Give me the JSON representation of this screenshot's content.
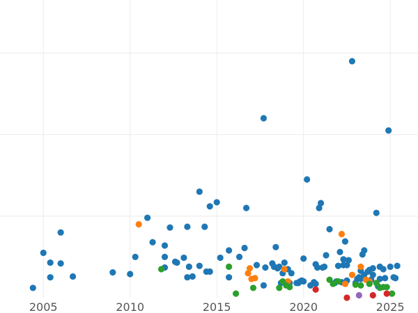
{
  "chart_data": {
    "type": "scatter",
    "title": "",
    "xlabel": "",
    "ylabel": "",
    "xlim": [
      2002.5,
      2026.6
    ],
    "ylim": [
      0,
      3.65
    ],
    "x_ticks": [
      2005,
      2010,
      2015,
      2020,
      2025
    ],
    "x_tick_labels": [
      "2005",
      "2010",
      "2015",
      "2020",
      "2025"
    ],
    "y_gridlines": [
      1,
      2,
      3
    ],
    "grid": true,
    "legend": "none",
    "series": [
      {
        "color": "#1f77b4",
        "x": [
          2004.4,
          2005.0,
          2005.4,
          2005.4,
          2006.0,
          2006.0,
          2006.7,
          2009.0,
          2010.0,
          2010.3,
          2011.0,
          2011.3,
          2012.0,
          2012.0,
          2012.0,
          2012.3,
          2012.6,
          2012.7,
          2013.1,
          2013.3,
          2013.3,
          2013.4,
          2013.6,
          2014.0,
          2014.0,
          2014.3,
          2014.4,
          2014.6,
          2014.6,
          2015.0,
          2015.2,
          2015.7,
          2015.7,
          2016.3,
          2016.6,
          2016.7,
          2017.3,
          2017.7,
          2017.7,
          2017.8,
          2018.2,
          2018.3,
          2018.4,
          2018.5,
          2018.6,
          2018.7,
          2018.8,
          2018.9,
          2019.0,
          2019.1,
          2019.2,
          2019.3,
          2019.6,
          2019.7,
          2019.8,
          2019.9,
          2020.0,
          2020.0,
          2020.2,
          2020.4,
          2020.6,
          2020.7,
          2020.7,
          2020.8,
          2020.9,
          2021.0,
          2021.1,
          2021.2,
          2021.3,
          2021.5,
          2021.8,
          2021.9,
          2022.0,
          2022.1,
          2022.2,
          2022.3,
          2022.3,
          2022.4,
          2022.5,
          2022.5,
          2022.6,
          2022.8,
          2023.0,
          2023.1,
          2023.2,
          2023.3,
          2023.3,
          2023.4,
          2023.5,
          2023.5,
          2023.7,
          2023.8,
          2023.9,
          2024.0,
          2024.0,
          2024.2,
          2024.3,
          2024.4,
          2024.4,
          2024.6,
          2024.7,
          2024.9,
          2025.0,
          2025.2,
          2025.3,
          2025.4
        ],
        "y": [
          0.12,
          0.55,
          0.25,
          0.43,
          0.42,
          0.8,
          0.26,
          0.31,
          0.29,
          0.5,
          0.98,
          0.68,
          0.37,
          0.5,
          0.64,
          0.86,
          0.44,
          0.43,
          0.49,
          0.25,
          0.87,
          0.38,
          0.26,
          1.3,
          0.39,
          0.87,
          0.32,
          0.32,
          1.12,
          1.17,
          0.49,
          0.25,
          0.58,
          0.5,
          0.61,
          1.1,
          0.4,
          2.2,
          0.15,
          0.37,
          0.42,
          0.38,
          0.62,
          0.36,
          0.38,
          0.18,
          0.3,
          0.43,
          0.16,
          0.35,
          0.18,
          0.3,
          0.18,
          0.18,
          0.2,
          0.21,
          0.2,
          0.48,
          1.45,
          0.15,
          0.19,
          0.17,
          0.41,
          0.37,
          1.1,
          1.16,
          0.37,
          0.38,
          0.52,
          0.84,
          0.18,
          0.2,
          0.39,
          0.56,
          0.19,
          0.4,
          0.47,
          0.69,
          0.21,
          0.4,
          0.46,
          2.9,
          0.18,
          0.23,
          0.25,
          0.23,
          0.33,
          0.53,
          0.58,
          0.28,
          0.32,
          0.34,
          0.22,
          0.28,
          0.36,
          1.04,
          0.14,
          0.23,
          0.38,
          0.35,
          0.24,
          2.05,
          0.38,
          0.25,
          0.24,
          0.39
        ]
      },
      {
        "color": "#ff7f0e",
        "x": [
          2010.5,
          2016.8,
          2016.9,
          2017.0,
          2017.2,
          2018.9,
          2019.1,
          2022.2,
          2022.4,
          2022.8,
          2023.3,
          2023.6,
          2023.8
        ],
        "y": [
          0.9,
          0.3,
          0.36,
          0.23,
          0.24,
          0.35,
          0.2,
          0.78,
          0.17,
          0.28,
          0.38,
          0.22,
          0.2
        ]
      },
      {
        "color": "#2ca02c",
        "x": [
          2011.8,
          2015.7,
          2016.1,
          2017.1,
          2018.6,
          2018.8,
          2019.0,
          2019.2,
          2021.5,
          2021.7,
          2022.0,
          2023.0,
          2023.3,
          2023.8,
          2024.2,
          2024.4,
          2024.6,
          2024.8,
          2025.1
        ],
        "y": [
          0.35,
          0.38,
          0.05,
          0.12,
          0.12,
          0.2,
          0.15,
          0.13,
          0.22,
          0.17,
          0.2,
          0.16,
          0.15,
          0.17,
          0.18,
          0.12,
          0.13,
          0.13,
          0.05
        ]
      },
      {
        "color": "#d62728",
        "x": [
          2020.7,
          2022.5,
          2024.0,
          2024.8
        ],
        "y": [
          0.1,
          0.0,
          0.03,
          0.05
        ]
      },
      {
        "color": "#9467bd",
        "x": [
          2023.2
        ],
        "y": [
          0.03
        ]
      }
    ]
  }
}
